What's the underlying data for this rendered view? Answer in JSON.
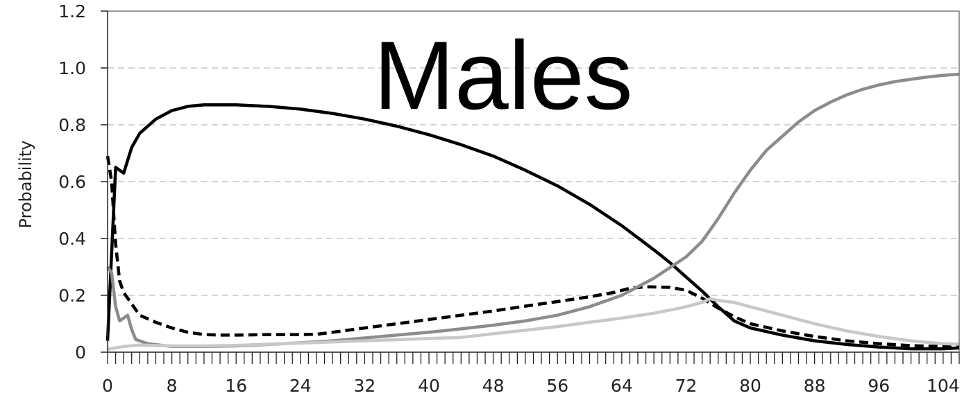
{
  "chart_data": {
    "type": "line",
    "title": "Males",
    "xlabel": "",
    "ylabel": "Probability",
    "xlim": [
      0,
      106
    ],
    "ylim": [
      0,
      1.2
    ],
    "x_ticks": [
      0,
      8,
      16,
      24,
      32,
      40,
      48,
      56,
      64,
      72,
      80,
      88,
      96,
      104
    ],
    "y_ticks": [
      0,
      0.2,
      0.4,
      0.6,
      0.8,
      1.0,
      1.2
    ],
    "y_tick_labels": [
      "0",
      "0.2",
      "0.4",
      "0.6",
      "0.8",
      "1.0",
      "1.2"
    ],
    "grid": "horizontal dashed",
    "legend": "none",
    "series": [
      {
        "color": "#000000",
        "style": "solid",
        "points": [
          [
            0,
            0.04
          ],
          [
            1,
            0.65
          ],
          [
            2,
            0.63
          ],
          [
            3,
            0.72
          ],
          [
            4,
            0.77
          ],
          [
            6,
            0.82
          ],
          [
            8,
            0.85
          ],
          [
            10,
            0.865
          ],
          [
            12,
            0.87
          ],
          [
            14,
            0.87
          ],
          [
            16,
            0.87
          ],
          [
            20,
            0.865
          ],
          [
            24,
            0.855
          ],
          [
            28,
            0.84
          ],
          [
            32,
            0.82
          ],
          [
            36,
            0.795
          ],
          [
            40,
            0.765
          ],
          [
            44,
            0.73
          ],
          [
            48,
            0.69
          ],
          [
            52,
            0.64
          ],
          [
            56,
            0.585
          ],
          [
            60,
            0.52
          ],
          [
            64,
            0.445
          ],
          [
            68,
            0.36
          ],
          [
            70,
            0.315
          ],
          [
            72,
            0.265
          ],
          [
            74,
            0.215
          ],
          [
            76,
            0.16
          ],
          [
            78,
            0.11
          ],
          [
            80,
            0.085
          ],
          [
            84,
            0.06
          ],
          [
            88,
            0.04
          ],
          [
            92,
            0.027
          ],
          [
            96,
            0.018
          ],
          [
            100,
            0.012
          ],
          [
            104,
            0.012
          ],
          [
            106,
            0.015
          ]
        ]
      },
      {
        "color": "#000000",
        "style": "dashed",
        "points": [
          [
            0,
            0.69
          ],
          [
            0.5,
            0.6
          ],
          [
            1,
            0.38
          ],
          [
            1.5,
            0.25
          ],
          [
            2,
            0.21
          ],
          [
            3,
            0.17
          ],
          [
            4,
            0.13
          ],
          [
            6,
            0.105
          ],
          [
            8,
            0.085
          ],
          [
            10,
            0.07
          ],
          [
            12,
            0.062
          ],
          [
            14,
            0.06
          ],
          [
            16,
            0.06
          ],
          [
            20,
            0.062
          ],
          [
            24,
            0.062
          ],
          [
            26,
            0.063
          ],
          [
            28,
            0.07
          ],
          [
            32,
            0.085
          ],
          [
            36,
            0.1
          ],
          [
            40,
            0.115
          ],
          [
            44,
            0.13
          ],
          [
            48,
            0.145
          ],
          [
            52,
            0.162
          ],
          [
            56,
            0.178
          ],
          [
            60,
            0.195
          ],
          [
            63,
            0.21
          ],
          [
            65,
            0.225
          ],
          [
            67,
            0.23
          ],
          [
            70,
            0.228
          ],
          [
            72,
            0.218
          ],
          [
            74,
            0.19
          ],
          [
            76,
            0.155
          ],
          [
            78,
            0.125
          ],
          [
            80,
            0.1
          ],
          [
            84,
            0.075
          ],
          [
            88,
            0.055
          ],
          [
            92,
            0.04
          ],
          [
            96,
            0.03
          ],
          [
            100,
            0.023
          ],
          [
            104,
            0.02
          ],
          [
            106,
            0.02
          ]
        ]
      },
      {
        "color": "#8c8c8c",
        "style": "solid",
        "points": [
          [
            0,
            0.3
          ],
          [
            0.5,
            0.28
          ],
          [
            1,
            0.16
          ],
          [
            1.5,
            0.11
          ],
          [
            2.5,
            0.13
          ],
          [
            3,
            0.08
          ],
          [
            3.5,
            0.045
          ],
          [
            5,
            0.03
          ],
          [
            8,
            0.02
          ],
          [
            12,
            0.02
          ],
          [
            16,
            0.022
          ],
          [
            20,
            0.027
          ],
          [
            24,
            0.033
          ],
          [
            28,
            0.04
          ],
          [
            32,
            0.05
          ],
          [
            36,
            0.06
          ],
          [
            40,
            0.07
          ],
          [
            44,
            0.082
          ],
          [
            48,
            0.095
          ],
          [
            52,
            0.11
          ],
          [
            56,
            0.13
          ],
          [
            60,
            0.16
          ],
          [
            64,
            0.2
          ],
          [
            68,
            0.26
          ],
          [
            72,
            0.335
          ],
          [
            74,
            0.39
          ],
          [
            76,
            0.47
          ],
          [
            78,
            0.56
          ],
          [
            80,
            0.64
          ],
          [
            82,
            0.71
          ],
          [
            84,
            0.76
          ],
          [
            86,
            0.81
          ],
          [
            88,
            0.85
          ],
          [
            90,
            0.88
          ],
          [
            92,
            0.905
          ],
          [
            94,
            0.925
          ],
          [
            96,
            0.94
          ],
          [
            98,
            0.952
          ],
          [
            100,
            0.96
          ],
          [
            102,
            0.968
          ],
          [
            104,
            0.974
          ],
          [
            106,
            0.978
          ]
        ]
      },
      {
        "color": "#c8c8c8",
        "style": "solid",
        "points": [
          [
            0,
            0.01
          ],
          [
            2,
            0.02
          ],
          [
            4,
            0.025
          ],
          [
            8,
            0.022
          ],
          [
            12,
            0.022
          ],
          [
            16,
            0.024
          ],
          [
            20,
            0.028
          ],
          [
            24,
            0.032
          ],
          [
            28,
            0.036
          ],
          [
            32,
            0.04
          ],
          [
            36,
            0.044
          ],
          [
            40,
            0.048
          ],
          [
            44,
            0.052
          ],
          [
            48,
            0.065
          ],
          [
            52,
            0.077
          ],
          [
            56,
            0.09
          ],
          [
            60,
            0.105
          ],
          [
            64,
            0.12
          ],
          [
            68,
            0.137
          ],
          [
            70,
            0.148
          ],
          [
            72,
            0.16
          ],
          [
            74,
            0.175
          ],
          [
            75,
            0.188
          ],
          [
            76,
            0.182
          ],
          [
            78,
            0.175
          ],
          [
            80,
            0.16
          ],
          [
            84,
            0.13
          ],
          [
            88,
            0.1
          ],
          [
            92,
            0.075
          ],
          [
            96,
            0.055
          ],
          [
            100,
            0.04
          ],
          [
            104,
            0.03
          ],
          [
            106,
            0.028
          ]
        ]
      }
    ]
  }
}
